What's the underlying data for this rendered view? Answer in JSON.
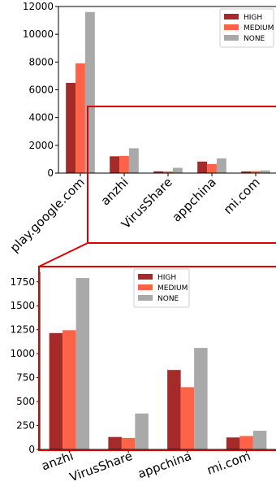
{
  "chart_data": [
    {
      "type": "bar",
      "title": "",
      "xlabel": "",
      "ylabel": "",
      "categories": [
        "play.google.com",
        "anzhi",
        "VirusShare",
        "appchina",
        "mi.com"
      ],
      "series": [
        {
          "name": "HIGH",
          "values": [
            6500,
            1210,
            130,
            830,
            125
          ]
        },
        {
          "name": "MEDIUM",
          "values": [
            7900,
            1240,
            120,
            650,
            140
          ]
        },
        {
          "name": "NONE",
          "values": [
            11600,
            1790,
            380,
            1060,
            195
          ]
        }
      ],
      "ylim": [
        0,
        12000
      ],
      "yticks": [
        "0",
        "2000",
        "4000",
        "6000",
        "8000",
        "10000",
        "12000"
      ],
      "legend": "top-right",
      "grid": false
    },
    {
      "type": "bar",
      "title": "",
      "xlabel": "",
      "ylabel": "",
      "categories": [
        "anzhi",
        "VirusShare",
        "appchina",
        "mi.com"
      ],
      "series": [
        {
          "name": "HIGH",
          "values": [
            1215,
            130,
            830,
            125
          ]
        },
        {
          "name": "MEDIUM",
          "values": [
            1245,
            120,
            650,
            140
          ]
        },
        {
          "name": "NONE",
          "values": [
            1790,
            375,
            1060,
            195
          ]
        }
      ],
      "ylim": [
        0,
        1850
      ],
      "yticks": [
        "0",
        "250",
        "500",
        "750",
        "1000",
        "1250",
        "1500",
        "1750"
      ],
      "legend": "top-center",
      "grid": false
    }
  ],
  "colors": {
    "HIGH": "#a52a2a",
    "MEDIUM": "#ff6347",
    "NONE": "#a9a9a9",
    "highlight": "#e00000"
  }
}
